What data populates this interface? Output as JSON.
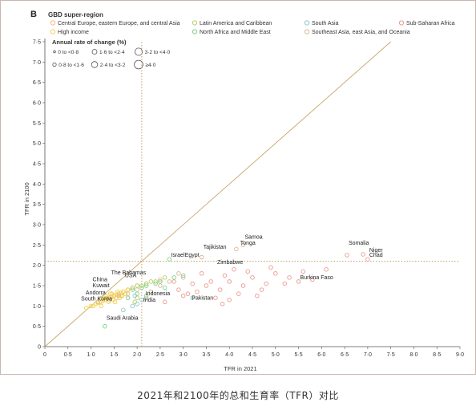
{
  "panel_label": "B",
  "caption": "2021年和2100年的总和生育率（TFR）对比",
  "colors": {
    "frame": "#c9b6b0",
    "axis": "#555555",
    "diagonal": "#c8a76a",
    "ref_dotted": "#b89a5a",
    "central_europe": "#f0b878",
    "latin_america": "#b4cf6a",
    "south_asia": "#8fc9c8",
    "subsaharan_africa": "#ec9a8e",
    "high_income": "#f2d04a",
    "north_africa": "#7bd088",
    "southeast_asia": "#d8b99a"
  },
  "legend": {
    "region_title": "GBD super-region",
    "regions": [
      {
        "key": "central_europe",
        "label": "Central Europe, eastern Europe, and central Asia"
      },
      {
        "key": "latin_america",
        "label": "Latin America and Caribbean"
      },
      {
        "key": "south_asia",
        "label": "South Asia"
      },
      {
        "key": "subsaharan_africa",
        "label": "Sub-Saharan Africa"
      },
      {
        "key": "high_income",
        "label": "High income"
      },
      {
        "key": "north_africa",
        "label": "North Africa and Middle East"
      },
      {
        "key": "southeast_asia",
        "label": "Southeast Asia, east Asia, and Oceania"
      }
    ],
    "rate_title": "Annual rate of change (%)",
    "rates": [
      {
        "label": "0 to <0·8"
      },
      {
        "label": "1·6 to <2·4"
      },
      {
        "label": "3·2 to <4·0"
      },
      {
        "label": "0·8 to <1·6"
      },
      {
        "label": "2·4 to <3·2"
      },
      {
        "label": "≥4·0"
      }
    ]
  },
  "chart_data": {
    "type": "scatter",
    "title": "",
    "xlabel": "TFR in 2021",
    "ylabel": "TFR in 2100",
    "xlim": [
      0,
      9
    ],
    "ylim": [
      0,
      7.5
    ],
    "x_ticks": [
      "0",
      "0·5",
      "1·0",
      "1·5",
      "2·0",
      "2·5",
      "3·0",
      "3·5",
      "4·0",
      "4·5",
      "5·0",
      "5·5",
      "6·0",
      "6·5",
      "7·0",
      "7·5",
      "8·0",
      "8·5",
      "9·0"
    ],
    "y_ticks": [
      "0",
      "0·5",
      "1·0",
      "1·5",
      "2·0",
      "2·5",
      "3·0",
      "3·5",
      "4·0",
      "4·5",
      "5·0",
      "5·5",
      "6·0",
      "6·5",
      "7·0",
      "7·5"
    ],
    "reference_lines": {
      "replacement_tfr": 2.1,
      "diagonal": "y = x"
    },
    "labels": [
      {
        "text": "Samoa",
        "x": 4.3,
        "y": 2.6
      },
      {
        "text": "Tonga",
        "x": 4.2,
        "y": 2.45
      },
      {
        "text": "Somalia",
        "x": 6.55,
        "y": 2.45
      },
      {
        "text": "Niger",
        "x": 7.0,
        "y": 2.27
      },
      {
        "text": "Chad",
        "x": 7.0,
        "y": 2.15
      },
      {
        "text": "Tajikistan",
        "x": 3.4,
        "y": 2.35
      },
      {
        "text": "Israel",
        "x": 2.7,
        "y": 2.15
      },
      {
        "text": "Egypt",
        "x": 3.0,
        "y": 2.15
      },
      {
        "text": "Zimbabwe",
        "x": 3.7,
        "y": 1.97
      },
      {
        "text": "The Bahamas",
        "x": 1.4,
        "y": 1.72
      },
      {
        "text": "USA",
        "x": 1.7,
        "y": 1.65
      },
      {
        "text": "China",
        "x": 1.0,
        "y": 1.55
      },
      {
        "text": "Kuwait",
        "x": 1.0,
        "y": 1.4
      },
      {
        "text": "Andorra",
        "x": 0.85,
        "y": 1.22
      },
      {
        "text": "South Korea",
        "x": 0.75,
        "y": 1.08
      },
      {
        "text": "Burkina Faso",
        "x": 5.5,
        "y": 1.6
      },
      {
        "text": "Indonesia",
        "x": 2.15,
        "y": 1.2
      },
      {
        "text": "India",
        "x": 2.1,
        "y": 1.05
      },
      {
        "text": "Pakistan",
        "x": 3.15,
        "y": 1.1
      },
      {
        "text": "Saudi Arabia",
        "x": 1.3,
        "y": 0.6
      }
    ],
    "series": [
      {
        "name": "Central Europe, eastern Europe, and central Asia",
        "key": "central_europe",
        "points": [
          [
            1.4,
            1.2
          ],
          [
            1.5,
            1.25
          ],
          [
            1.6,
            1.3
          ],
          [
            1.3,
            1.15
          ],
          [
            1.7,
            1.35
          ],
          [
            1.8,
            1.4
          ],
          [
            2.0,
            1.5
          ],
          [
            1.55,
            1.2
          ],
          [
            1.45,
            1.3
          ],
          [
            1.65,
            1.25
          ],
          [
            2.2,
            1.55
          ],
          [
            2.5,
            1.65
          ],
          [
            3.4,
            2.2
          ],
          [
            1.9,
            1.45
          ]
        ]
      },
      {
        "name": "Latin America and Caribbean",
        "key": "latin_america",
        "points": [
          [
            1.6,
            1.3
          ],
          [
            1.8,
            1.4
          ],
          [
            2.0,
            1.5
          ],
          [
            2.2,
            1.55
          ],
          [
            1.7,
            1.35
          ],
          [
            1.5,
            1.25
          ],
          [
            2.4,
            1.6
          ],
          [
            2.6,
            1.7
          ],
          [
            1.9,
            1.45
          ],
          [
            2.1,
            1.5
          ],
          [
            1.35,
            1.2
          ],
          [
            2.3,
            1.6
          ],
          [
            1.95,
            1.1
          ],
          [
            2.0,
            1.2
          ]
        ]
      },
      {
        "name": "South Asia",
        "key": "south_asia",
        "points": [
          [
            2.0,
            1.05
          ],
          [
            2.1,
            1.15
          ],
          [
            1.9,
            1.0
          ],
          [
            3.2,
            1.2
          ],
          [
            1.7,
            0.9
          ],
          [
            1.95,
            1.25
          ]
        ]
      },
      {
        "name": "Sub-Saharan Africa",
        "key": "subsaharan_africa",
        "points": [
          [
            6.55,
            2.25
          ],
          [
            6.9,
            2.27
          ],
          [
            7.0,
            2.15
          ],
          [
            5.5,
            1.6
          ],
          [
            5.3,
            1.7
          ],
          [
            5.0,
            1.8
          ],
          [
            4.8,
            1.55
          ],
          [
            4.5,
            1.7
          ],
          [
            4.3,
            1.5
          ],
          [
            4.0,
            1.6
          ],
          [
            3.8,
            1.4
          ],
          [
            3.5,
            1.5
          ],
          [
            3.3,
            1.35
          ],
          [
            4.2,
            1.3
          ],
          [
            4.7,
            1.4
          ],
          [
            5.2,
            1.55
          ],
          [
            5.8,
            1.65
          ],
          [
            4.1,
            1.9
          ],
          [
            3.9,
            1.75
          ],
          [
            4.4,
            1.85
          ],
          [
            3.6,
            1.6
          ],
          [
            3.1,
            1.3
          ],
          [
            2.9,
            1.4
          ],
          [
            3.7,
            1.2
          ],
          [
            4.6,
            1.25
          ],
          [
            5.6,
            1.85
          ],
          [
            6.1,
            1.9
          ],
          [
            3.4,
            1.8
          ],
          [
            4.9,
            1.95
          ],
          [
            2.8,
            1.6
          ],
          [
            3.0,
            1.25
          ],
          [
            2.6,
            1.1
          ],
          [
            3.2,
            1.55
          ],
          [
            4.0,
            1.15
          ],
          [
            3.85,
            1.05
          ]
        ]
      },
      {
        "name": "High income",
        "key": "high_income",
        "points": [
          [
            1.0,
            1.0
          ],
          [
            1.1,
            1.05
          ],
          [
            1.2,
            1.1
          ],
          [
            1.3,
            1.15
          ],
          [
            1.4,
            1.2
          ],
          [
            1.5,
            1.25
          ],
          [
            1.6,
            1.3
          ],
          [
            1.7,
            1.35
          ],
          [
            1.8,
            1.4
          ],
          [
            1.25,
            1.12
          ],
          [
            1.35,
            1.18
          ],
          [
            1.45,
            1.22
          ],
          [
            1.55,
            1.28
          ],
          [
            1.15,
            1.08
          ],
          [
            0.9,
            0.95
          ],
          [
            1.05,
            1.0
          ],
          [
            1.65,
            1.32
          ],
          [
            1.75,
            1.3
          ],
          [
            1.28,
            1.2
          ],
          [
            1.38,
            1.1
          ],
          [
            1.48,
            1.15
          ],
          [
            1.58,
            1.35
          ],
          [
            1.68,
            1.25
          ],
          [
            1.22,
            1.0
          ],
          [
            1.42,
            1.3
          ],
          [
            1.52,
            1.1
          ],
          [
            1.62,
            1.2
          ],
          [
            1.32,
            1.25
          ]
        ]
      },
      {
        "name": "North Africa and Middle East",
        "key": "north_africa",
        "points": [
          [
            2.7,
            2.15
          ],
          [
            2.2,
            1.5
          ],
          [
            2.4,
            1.55
          ],
          [
            1.9,
            1.4
          ],
          [
            2.8,
            1.7
          ],
          [
            2.5,
            1.6
          ],
          [
            2.6,
            1.45
          ],
          [
            3.0,
            1.75
          ],
          [
            2.1,
            1.45
          ],
          [
            2.3,
            1.35
          ],
          [
            1.3,
            0.5
          ],
          [
            1.8,
            1.2
          ],
          [
            2.0,
            1.3
          ],
          [
            2.2,
            1.25
          ]
        ]
      },
      {
        "name": "Southeast Asia, east Asia, and Oceania",
        "key": "southeast_asia",
        "points": [
          [
            1.15,
            1.1
          ],
          [
            4.3,
            2.5
          ],
          [
            4.15,
            2.4
          ],
          [
            2.2,
            1.2
          ],
          [
            1.8,
            1.3
          ],
          [
            2.0,
            1.4
          ],
          [
            2.5,
            1.5
          ],
          [
            2.7,
            1.6
          ],
          [
            3.0,
            1.7
          ],
          [
            3.4,
            2.2
          ],
          [
            1.6,
            1.25
          ],
          [
            2.3,
            1.35
          ],
          [
            1.4,
            1.15
          ],
          [
            2.9,
            1.8
          ]
        ]
      }
    ]
  }
}
